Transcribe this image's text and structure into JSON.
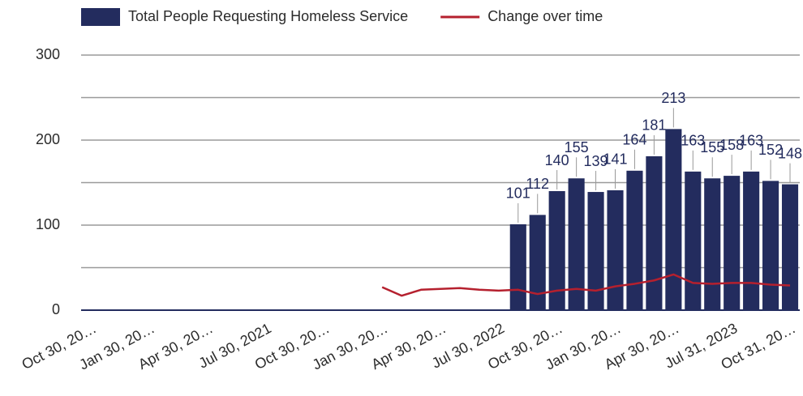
{
  "chart_data": {
    "type": "bar_line",
    "categories": [
      "Oct 30, 20…",
      null,
      null,
      "Jan 30, 20…",
      null,
      null,
      "Apr 30, 20…",
      null,
      null,
      "Jul 30, 2021",
      null,
      null,
      "Oct 30, 20…",
      null,
      null,
      "Jan 30, 20…",
      null,
      null,
      "Apr 30, 20…",
      null,
      null,
      "Jul 30, 2022",
      null,
      null,
      "Oct 30, 20…",
      null,
      null,
      "Jan 30, 20…",
      null,
      null,
      "Apr 30, 20…",
      null,
      null,
      "Jul 31, 2023",
      null,
      null,
      "Oct 31, 20…"
    ],
    "series": [
      {
        "name": "Total People Requesting Homeless Service",
        "type": "bar",
        "color": "#232c5e",
        "values": [
          null,
          null,
          null,
          null,
          null,
          null,
          null,
          null,
          null,
          null,
          null,
          null,
          null,
          null,
          null,
          null,
          null,
          null,
          null,
          null,
          null,
          null,
          101,
          112,
          140,
          155,
          139,
          141,
          164,
          181,
          213,
          163,
          155,
          158,
          163,
          152,
          148
        ]
      },
      {
        "name": "Change over time",
        "type": "line",
        "color": "#b5202e",
        "values": [
          null,
          null,
          null,
          null,
          null,
          null,
          null,
          null,
          null,
          null,
          null,
          null,
          null,
          null,
          null,
          27,
          17,
          24,
          25,
          26,
          24,
          23,
          24,
          19,
          23,
          25,
          23,
          28,
          31,
          35,
          42,
          32,
          31,
          32,
          32,
          30,
          29
        ]
      }
    ],
    "ylim": [
      0,
      300
    ],
    "yticks": [
      0,
      100,
      200,
      300
    ],
    "y_minor_gridlines": [
      50,
      150,
      250
    ],
    "grid": true
  }
}
